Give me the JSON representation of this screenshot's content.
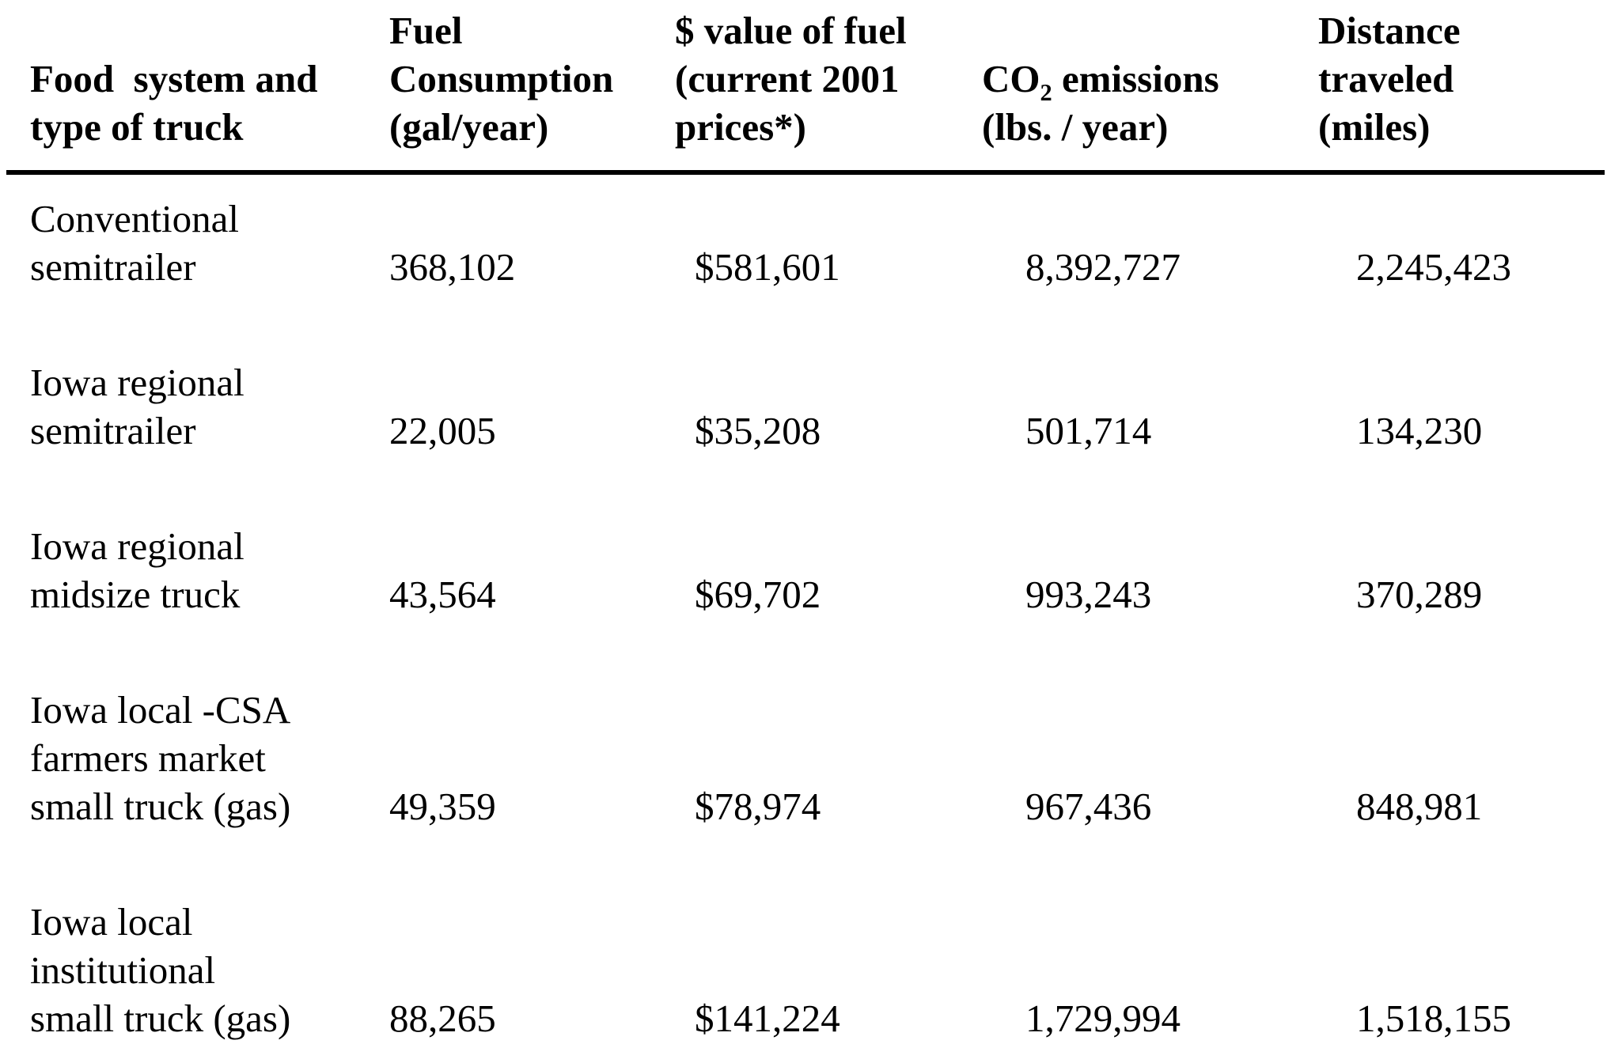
{
  "table": {
    "headers": {
      "col1": {
        "lines": [
          "Food  system and",
          "type of truck"
        ]
      },
      "col2": {
        "lines": [
          "Fuel",
          "Consumption",
          "(gal/year)"
        ]
      },
      "col3": {
        "lines": [
          "$ value of fuel",
          "(current 2001",
          "prices*)"
        ]
      },
      "col4": {
        "line1_pre": "CO",
        "line1_sub": "2",
        "line1_post": " emissions",
        "line2": "(lbs. / year)"
      },
      "col5": {
        "lines": [
          "Distance",
          "traveled",
          "(miles)"
        ]
      }
    },
    "rows": [
      {
        "label_lines": [
          "Conventional",
          "semitrailer"
        ],
        "fuel": "368,102",
        "value": "$581,601",
        "co2": "8,392,727",
        "distance": "2,245,423"
      },
      {
        "label_lines": [
          "Iowa regional",
          "semitrailer"
        ],
        "fuel": "22,005",
        "value": "$35,208",
        "co2": "501,714",
        "distance": "134,230"
      },
      {
        "label_lines": [
          "Iowa regional",
          "midsize truck"
        ],
        "fuel": "43,564",
        "value": "$69,702",
        "co2": "993,243",
        "distance": "370,289"
      },
      {
        "label_lines": [
          "Iowa local -CSA",
          "farmers market",
          "small truck (gas)"
        ],
        "fuel": "49,359",
        "value": "$78,974",
        "co2": "967,436",
        "distance": "848,981"
      },
      {
        "label_lines": [
          "Iowa local",
          "institutional",
          "small truck (gas)"
        ],
        "fuel": "88,265",
        "value": "$141,224",
        "co2": "1,729,994",
        "distance": "1,518,155"
      }
    ]
  },
  "colors": {
    "text": "#000000",
    "background": "#ffffff",
    "header_rule": "#000000"
  },
  "chart_data": {
    "type": "table",
    "title": "",
    "columns": [
      "Food system and type of truck",
      "Fuel Consumption (gal/year)",
      "$ value of fuel (current 2001 prices*)",
      "CO2 emissions (lbs. / year)",
      "Distance traveled (miles)"
    ],
    "rows": [
      [
        "Conventional semitrailer",
        368102,
        581601,
        8392727,
        2245423
      ],
      [
        "Iowa regional semitrailer",
        22005,
        35208,
        501714,
        134230
      ],
      [
        "Iowa regional midsize truck",
        43564,
        69702,
        993243,
        370289
      ],
      [
        "Iowa local -CSA farmers market small truck (gas)",
        49359,
        78974,
        967436,
        848981
      ],
      [
        "Iowa local institutional small truck (gas)",
        88265,
        141224,
        1729994,
        1518155
      ]
    ]
  }
}
